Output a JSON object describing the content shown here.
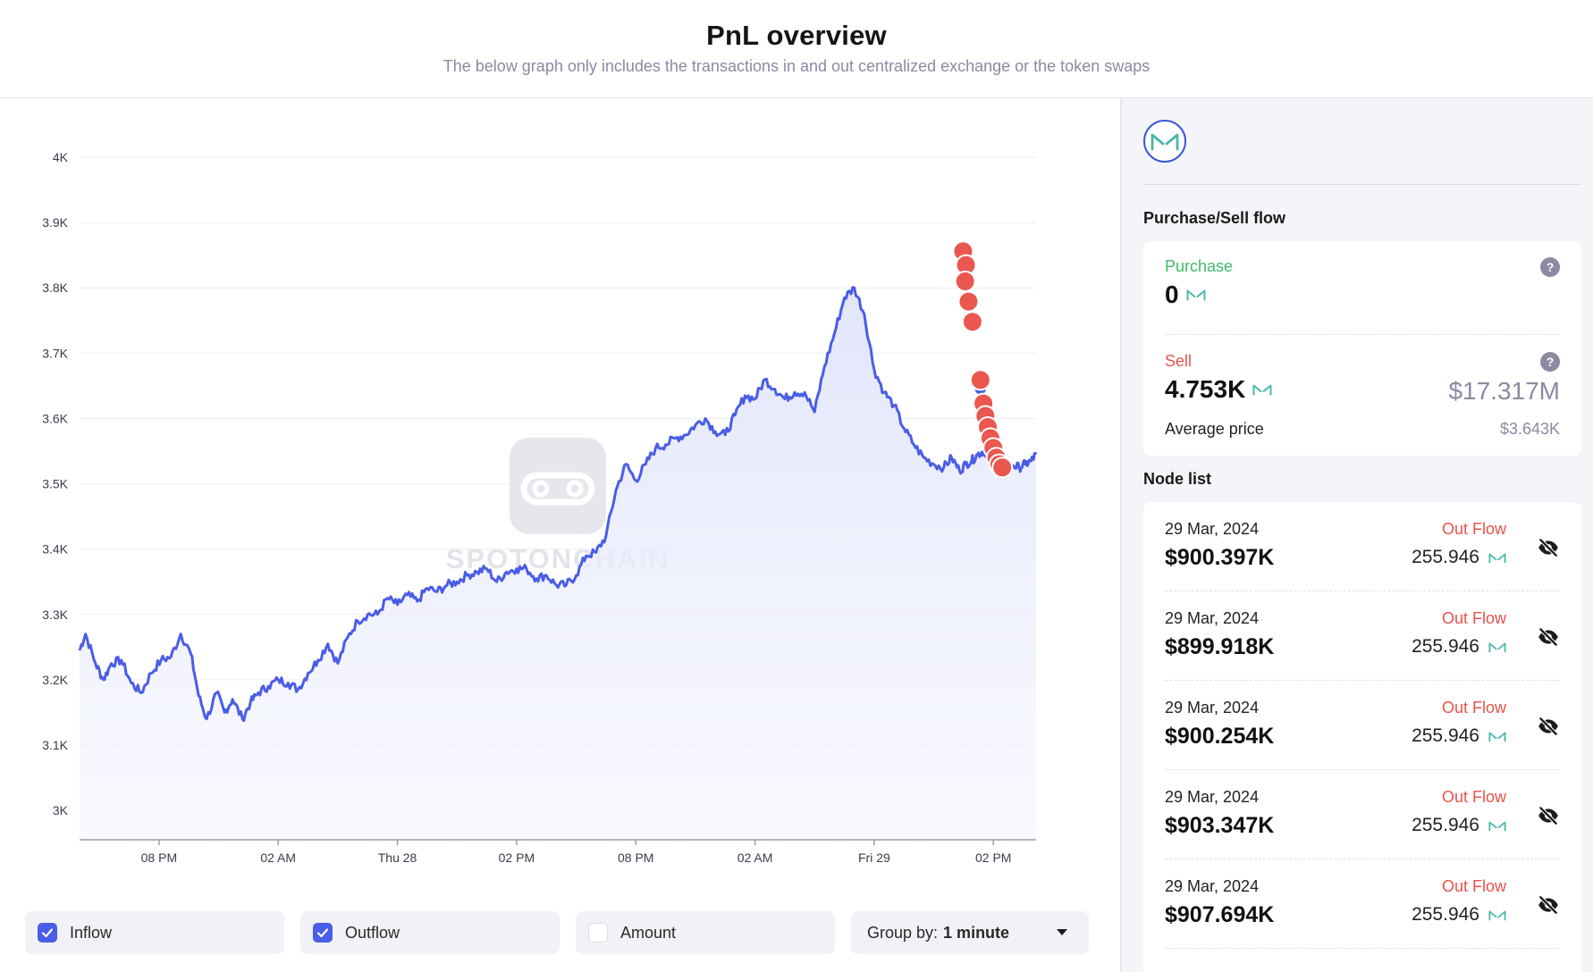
{
  "header": {
    "title": "PnL overview",
    "subtitle": "The below graph only includes the transactions in and out centralized exchange or the token swaps"
  },
  "chart_data": {
    "type": "line",
    "title": "",
    "xlabel": "",
    "ylabel": "",
    "ylim": [
      2955,
      4000
    ],
    "y_ticks": [
      "4K",
      "3.9K",
      "3.8K",
      "3.7K",
      "3.6K",
      "3.5K",
      "3.4K",
      "3.3K",
      "3.2K",
      "3.1K",
      "3K"
    ],
    "x_ticks": [
      "08 PM",
      "02 AM",
      "Thu 28",
      "02 PM",
      "08 PM",
      "02 AM",
      "Fri 29",
      "02 PM"
    ],
    "x_tick_hours": [
      20,
      26,
      32,
      38,
      44,
      50,
      56,
      62
    ],
    "x_range_hours": [
      16,
      64.15
    ],
    "grid": true,
    "legend": "none",
    "series": [
      {
        "x": [
          16,
          16.3,
          16.8,
          17.2,
          17.6,
          18.1,
          18.6,
          19.1,
          19.6,
          20.1,
          20.6,
          21.1,
          21.6,
          22.0,
          22.4,
          22.9,
          23.3,
          23.7,
          24.2,
          24.6,
          25.0,
          25.5,
          26.0,
          26.5,
          27.0,
          27.5,
          28.0,
          28.5,
          29.0,
          29.5,
          30.0,
          30.5,
          31.0,
          31.5,
          32.0,
          32.5,
          33.0,
          33.5,
          34.0,
          34.5,
          35.0,
          35.5,
          36.0,
          36.5,
          37.0,
          37.5,
          38.0,
          38.5,
          39.0,
          39.5,
          40.0,
          40.5,
          41.0,
          41.5,
          42.0,
          42.5,
          43.0,
          43.5,
          44.0,
          44.5,
          45.0,
          45.5,
          46.0,
          46.5,
          47.0,
          47.5,
          48.0,
          48.5,
          49.0,
          49.5,
          50.0,
          50.5,
          51.0,
          51.5,
          52.0,
          52.5,
          53.0,
          53.5,
          54.0,
          54.5,
          55.0,
          55.5,
          56.0,
          56.5,
          57.0,
          57.5,
          58.0,
          58.5,
          59.0,
          59.5,
          59.9,
          60.3,
          60.6,
          60.9,
          61.2,
          61.5,
          61.8,
          62.1,
          62.4,
          62.7,
          63.0,
          63.3,
          63.6,
          63.9,
          64.15
        ],
        "y": [
          3245,
          3270,
          3225,
          3200,
          3225,
          3230,
          3195,
          3180,
          3210,
          3230,
          3235,
          3270,
          3240,
          3175,
          3140,
          3180,
          3150,
          3170,
          3140,
          3165,
          3180,
          3190,
          3200,
          3195,
          3185,
          3210,
          3230,
          3255,
          3225,
          3265,
          3290,
          3300,
          3300,
          3325,
          3315,
          3330,
          3320,
          3340,
          3335,
          3345,
          3350,
          3360,
          3365,
          3370,
          3350,
          3365,
          3370,
          3370,
          3355,
          3360,
          3345,
          3345,
          3360,
          3390,
          3395,
          3420,
          3490,
          3530,
          3505,
          3530,
          3555,
          3560,
          3570,
          3575,
          3590,
          3600,
          3580,
          3575,
          3605,
          3635,
          3630,
          3660,
          3645,
          3630,
          3640,
          3640,
          3610,
          3680,
          3730,
          3785,
          3800,
          3760,
          3675,
          3640,
          3620,
          3585,
          3560,
          3540,
          3530,
          3525,
          3540,
          3520,
          3530,
          3535,
          3545,
          3550,
          3545,
          3530,
          3525,
          3522,
          3528,
          3525,
          3530,
          3535,
          3545
        ]
      }
    ],
    "markers": {
      "color": "#e9574f",
      "x": [
        60.48,
        60.62,
        60.58,
        60.75,
        60.95,
        61.35,
        61.5,
        61.6,
        61.72,
        61.85,
        62.0,
        62.15,
        62.3,
        62.45
      ],
      "y": [
        3856,
        3835,
        3810,
        3779,
        3748,
        3659,
        3623,
        3604,
        3587,
        3570,
        3555,
        3540,
        3530,
        3525
      ]
    },
    "watermark": "SPOTONCHAIN"
  },
  "controls": {
    "inflow": {
      "label": "Inflow",
      "checked": true
    },
    "outflow": {
      "label": "Outflow",
      "checked": true
    },
    "amount": {
      "label": "Amount",
      "checked": false
    },
    "group_by": {
      "label": "Group by:",
      "value": "1 minute"
    }
  },
  "sidebar": {
    "token_icon": "maker-logo-icon",
    "flow_title": "Purchase/Sell flow",
    "purchase": {
      "label": "Purchase",
      "value": "0",
      "label_color": "#3fb96b"
    },
    "sell": {
      "label": "Sell",
      "value": "4.753K",
      "usd": "$17.317M",
      "label_color": "#e8524a"
    },
    "average_price": {
      "label": "Average price",
      "value": "$3.643K"
    },
    "node_list_title": "Node list",
    "nodes": [
      {
        "date": "29 Mar, 2024",
        "usd": "$900.397K",
        "flow": "Out Flow",
        "amount": "255.946"
      },
      {
        "date": "29 Mar, 2024",
        "usd": "$899.918K",
        "flow": "Out Flow",
        "amount": "255.946"
      },
      {
        "date": "29 Mar, 2024",
        "usd": "$900.254K",
        "flow": "Out Flow",
        "amount": "255.946"
      },
      {
        "date": "29 Mar, 2024",
        "usd": "$903.347K",
        "flow": "Out Flow",
        "amount": "255.946"
      },
      {
        "date": "29 Mar, 2024",
        "usd": "$907.694K",
        "flow": "Out Flow",
        "amount": "255.946"
      }
    ]
  }
}
